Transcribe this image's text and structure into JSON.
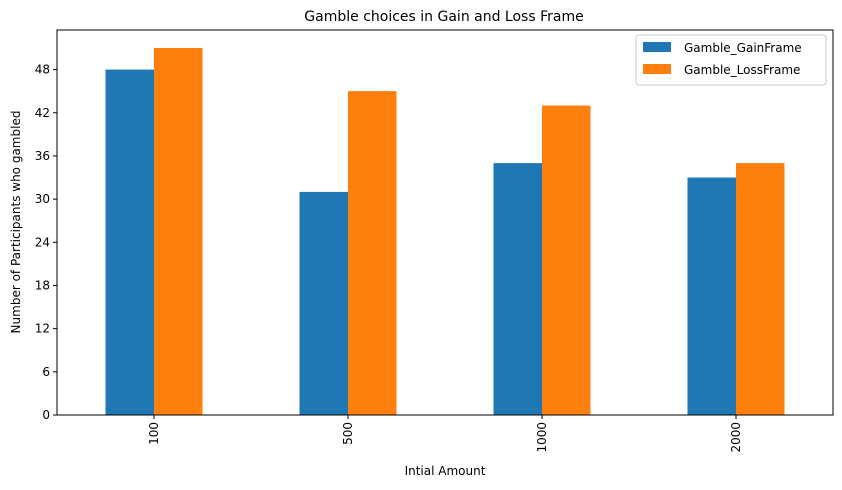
{
  "chart_data": {
    "type": "bar",
    "title": "Gamble choices in Gain and Loss Frame",
    "xlabel": "Intial Amount",
    "ylabel": "Number of Participants who gambled",
    "categories": [
      "100",
      "500",
      "1000",
      "2000"
    ],
    "series": [
      {
        "name": "Gamble_GainFrame",
        "color": "#1f77b4",
        "values": [
          48,
          31,
          35,
          33
        ]
      },
      {
        "name": "Gamble_LossFrame",
        "color": "#ff7f0e",
        "values": [
          51,
          45,
          43,
          35
        ]
      }
    ],
    "ylim": [
      0,
      53.5
    ],
    "yticks": [
      0,
      6,
      12,
      18,
      24,
      30,
      36,
      42,
      48
    ],
    "grid": false,
    "legend_position": "top-right",
    "xtick_rotation": "vertical"
  }
}
